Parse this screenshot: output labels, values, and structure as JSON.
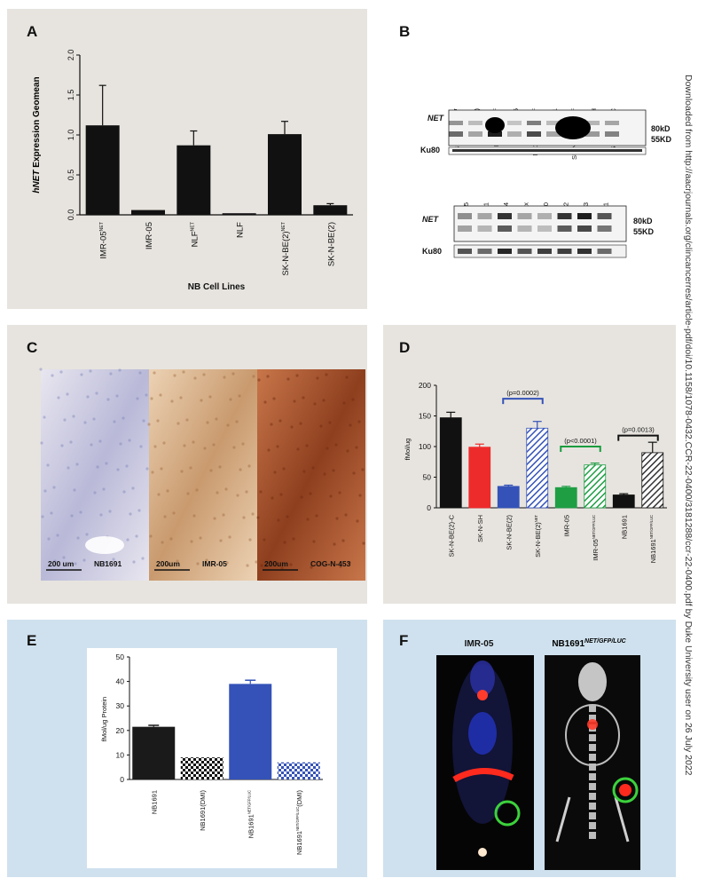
{
  "side_note": "Downloaded from http://aacrjournals.org/clincancerres/article-pdf/doi/10.1158/1078-0432.CCR-22-0400/3181288/ccr-22-0400.pdf by Duke University user on 26 July 2022",
  "colors": {
    "panel_gray": "#e7e4df",
    "panel_blue": "#cfe1ee",
    "bar_black": "#111111",
    "red": "#ee2b2b",
    "blue": "#3452b8",
    "green": "#1f9e44",
    "green_bracket": "#169c3f"
  },
  "panelA": {
    "label": "A",
    "chart_data": {
      "type": "bar",
      "categories": [
        "IMR-05^NET",
        "IMR-05",
        "NLF^NET",
        "NLF",
        "SK-N-BE(2)^NET",
        "SK-N-BE(2)"
      ],
      "values": [
        1.12,
        0.06,
        0.87,
        0.02,
        1.01,
        0.12
      ],
      "errors": [
        0.5,
        0.0,
        0.18,
        0.0,
        0.16,
        0.02
      ],
      "ylabel_italic": "hNET",
      "ylabel_rest": " Expression Geomean",
      "xlabel": "NB Cell Lines",
      "ylim": [
        0,
        2.0
      ],
      "yticks": [
        "0.0",
        "0.5",
        "1.0",
        "1.5",
        "2.0"
      ]
    }
  },
  "panelB": {
    "label": "B",
    "blot1": {
      "lanes": [
        {
          "t": "SK-N-BE(2)",
          "s": "NET"
        },
        {
          "t": "SK-N-BE(2)",
          "s": ""
        },
        {
          "t": "IMR-05",
          "s": "NET/GFP/LUC"
        },
        {
          "t": "IMR-05",
          "s": ""
        },
        {
          "t": "Nb1691",
          "s": "NET/GFP/LUC"
        },
        {
          "t": "Nb1691",
          "s": ""
        },
        {
          "t": "SK-N-SH",
          "s": "NET/GFP/LUC"
        },
        {
          "t": "SK-N-SH",
          "s": ""
        },
        {
          "t": "SK-N-BE(2)-C",
          "s": ""
        }
      ],
      "row1": "NET",
      "row2": "Ku80",
      "kd1": "80kD",
      "kd2": "55KD"
    },
    "blot2": {
      "lanes": [
        "COG-N-415",
        "COG-N-421",
        "COG-N-424",
        "Felix",
        "COG-N-440",
        "COG-N-452",
        "COG-N-453",
        "COG-N-471"
      ],
      "row1": "NET",
      "row2": "Ku80",
      "kd1": "80kD",
      "kd2": "55KD"
    }
  },
  "panelC": {
    "label": "C",
    "images": [
      {
        "scale": "200 um",
        "name": "NB1691"
      },
      {
        "scale": "200um",
        "name": "IMR-05"
      },
      {
        "scale": "200um",
        "name": "COG-N-453"
      }
    ]
  },
  "panelD": {
    "label": "D",
    "chart_data": {
      "type": "bar",
      "categories": [
        {
          "t": "SK-N-BE(2)-C",
          "s": ""
        },
        {
          "t": "SK-N-SH",
          "s": ""
        },
        {
          "t": "SK-N-BE(2)",
          "s": ""
        },
        {
          "t": "SK-N-BE(2)",
          "s": "NET"
        },
        {
          "t": "IMR-05",
          "s": ""
        },
        {
          "t": "IMR-05",
          "s": "NET/GFP/LUC"
        },
        {
          "t": "NB1691",
          "s": ""
        },
        {
          "t": "NB1691",
          "s": "NET/GFP/LUC"
        }
      ],
      "values": [
        147,
        99,
        35,
        130,
        33,
        70,
        21,
        90
      ],
      "errors": [
        9,
        5,
        2,
        11,
        2,
        3,
        2,
        17
      ],
      "colors": [
        "#111111",
        "#ee2b2b",
        "#3452b8",
        "#3452b8",
        "#1f9e44",
        "#1f9e44",
        "#111111",
        "#111111"
      ],
      "hatched": [
        false,
        false,
        false,
        true,
        false,
        true,
        false,
        true
      ],
      "ylabel": "fMol/ug",
      "ylim": [
        0,
        200
      ],
      "yticks": [
        "0",
        "50",
        "100",
        "150",
        "200"
      ],
      "annotations": [
        "(p=0.0002)",
        "(p<0.0001)",
        "(p=0.0013)"
      ]
    }
  },
  "panelE": {
    "label": "E",
    "chart_data": {
      "type": "bar",
      "categories": [
        {
          "t": "NB1691",
          "s": ""
        },
        {
          "t": "NB1691(DMI)",
          "s": ""
        },
        {
          "t": "NB1691",
          "s": "NET/GFP/LUC"
        },
        {
          "t": "NB1691",
          "s": "NET/GFP/LUC",
          "post": "(DMI)"
        }
      ],
      "values": [
        21.5,
        9,
        39,
        7
      ],
      "errors": [
        0.6,
        0,
        1.5,
        0
      ],
      "colors": [
        "#1a1a1a",
        "#111111",
        "#3452b8",
        "#3452b8"
      ],
      "checker": [
        false,
        true,
        false,
        true
      ],
      "ylabel": "fMol/ug Protein",
      "ylim": [
        0,
        50
      ],
      "yticks": [
        "0",
        "10",
        "20",
        "30",
        "40",
        "50"
      ]
    }
  },
  "panelF": {
    "label": "F",
    "left_title": "IMR-05",
    "right_title_main": "NB1691",
    "right_title_sup": "NET/GFP/LUC"
  }
}
